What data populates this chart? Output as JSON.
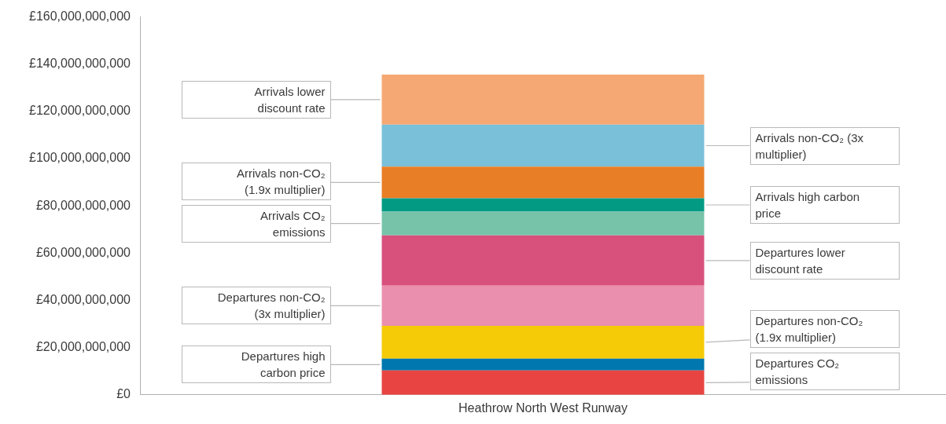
{
  "chart_data": {
    "type": "bar",
    "stacked": true,
    "legend": false,
    "grid": false,
    "categories": [
      "Heathrow North West Runway"
    ],
    "ylim": [
      0,
      160000000000
    ],
    "yticks": [
      {
        "value": 0,
        "label": "£0"
      },
      {
        "value": 20000000000,
        "label": "£20,000,000,000"
      },
      {
        "value": 40000000000,
        "label": "£40,000,000,000"
      },
      {
        "value": 60000000000,
        "label": "£60,000,000,000"
      },
      {
        "value": 80000000000,
        "label": "£80,000,000,000"
      },
      {
        "value": 100000000000,
        "label": "£100,000,000,000"
      },
      {
        "value": 120000000000,
        "label": "£120,000,000,000"
      },
      {
        "value": 140000000000,
        "label": "£140,000,000,000"
      },
      {
        "value": 160000000000,
        "label": "£160,000,000,000"
      }
    ],
    "series": [
      {
        "name": "Departures CO₂ emissions",
        "color": "#e84542",
        "values": [
          10300000000
        ]
      },
      {
        "name": "Departures high carbon price",
        "color": "#0077ae",
        "values": [
          5000000000
        ]
      },
      {
        "name": "Departures non-CO₂ (1.9x multiplier)",
        "color": "#f5ca07",
        "values": [
          13900000000
        ]
      },
      {
        "name": "Departures non-CO₂ (3x multiplier)",
        "color": "#ea8fad",
        "values": [
          17000000000
        ]
      },
      {
        "name": "Departures lower discount rate",
        "color": "#d8507c",
        "values": [
          21300000000
        ]
      },
      {
        "name": "Arrivals CO₂ emissions",
        "color": "#76c3aa",
        "values": [
          10100000000
        ]
      },
      {
        "name": "Arrivals high carbon price",
        "color": "#029a83",
        "values": [
          5600000000
        ]
      },
      {
        "name": "Arrivals non-CO₂ (1.9x multiplier)",
        "color": "#e87e26",
        "values": [
          13400000000
        ]
      },
      {
        "name": "Arrivals non-CO₂ (3x multiplier)",
        "color": "#7ac0d8",
        "values": [
          17800000000
        ]
      },
      {
        "name": "Arrivals lower discount rate",
        "color": "#f5a873",
        "values": [
          21200000000
        ]
      }
    ]
  }
}
